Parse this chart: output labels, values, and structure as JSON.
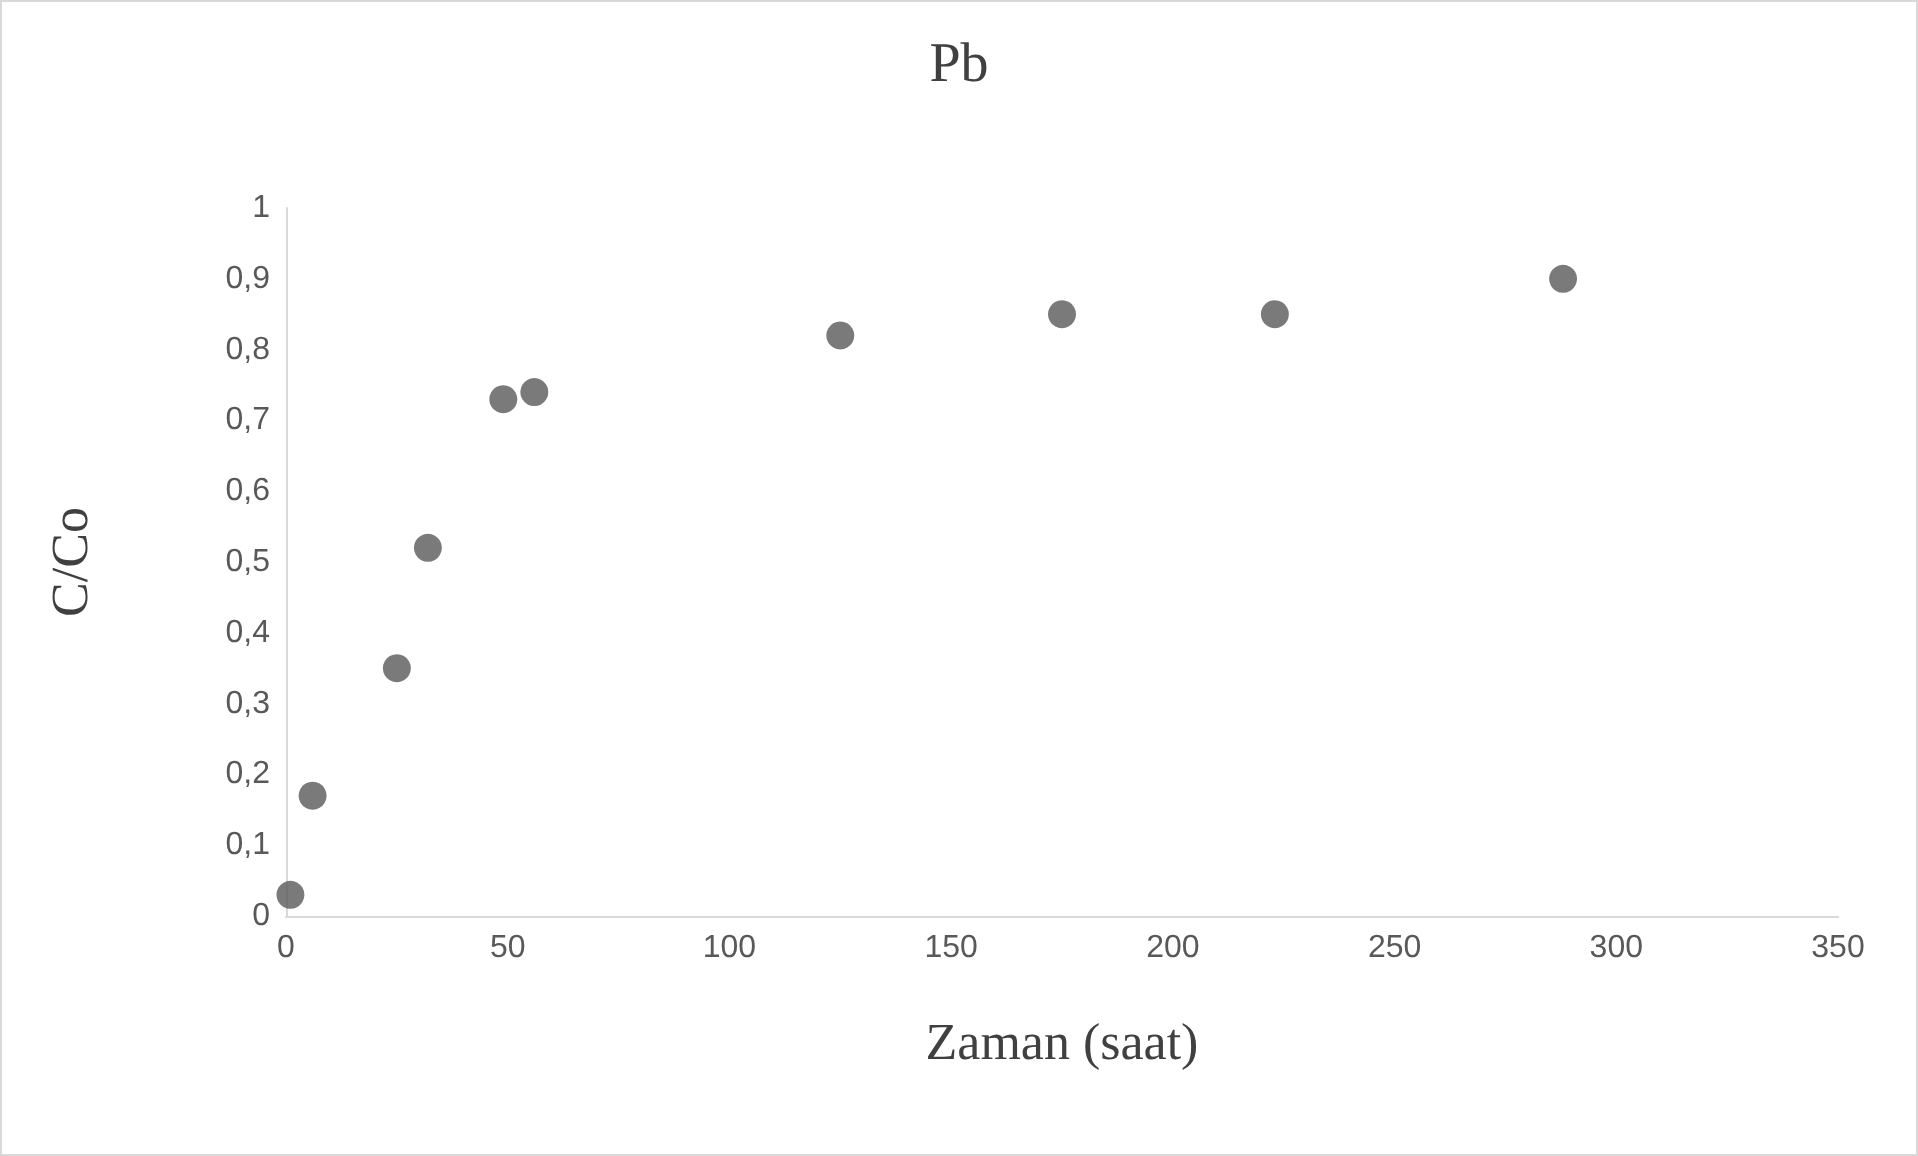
{
  "chart_data": {
    "type": "scatter",
    "title": "Pb",
    "xlabel": "Zaman (saat)",
    "ylabel": "C/Co",
    "x": [
      1,
      6,
      25,
      32,
      49,
      56,
      125,
      175,
      223,
      288
    ],
    "series": [
      {
        "color": "#595959",
        "values": [
          0.03,
          0.17,
          0.35,
          0.52,
          0.73,
          0.74,
          0.82,
          0.85,
          0.85,
          0.9
        ]
      }
    ],
    "xlim": [
      0,
      350
    ],
    "xticks": [
      0,
      50,
      100,
      150,
      200,
      250,
      300,
      350
    ],
    "ylim": [
      0,
      1
    ],
    "yticks": [
      0,
      {
        "value": 0.1,
        "label": "0,1"
      },
      {
        "value": 0.2,
        "label": "0,2"
      },
      {
        "value": 0.3,
        "label": "0,3"
      },
      {
        "value": 0.4,
        "label": "0,4"
      },
      {
        "value": 0.5,
        "label": "0,5"
      },
      {
        "value": 0.6,
        "label": "0,6"
      },
      {
        "value": 0.7,
        "label": "0,7"
      },
      {
        "value": 0.8,
        "label": "0,8"
      },
      {
        "value": 0.9,
        "label": "0,9"
      },
      1
    ],
    "grid": false,
    "marker": "circle"
  }
}
